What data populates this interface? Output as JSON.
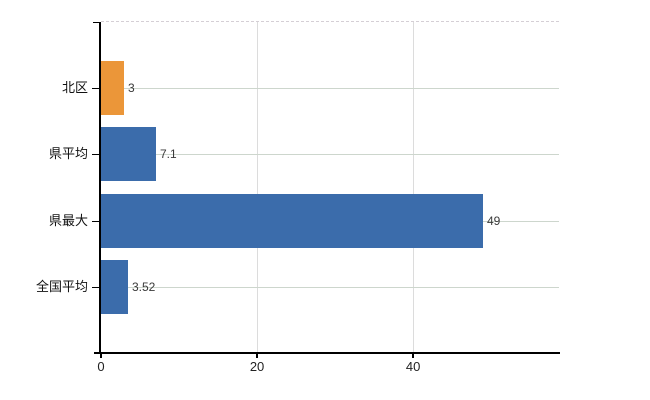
{
  "chart_data": {
    "type": "bar",
    "orientation": "horizontal",
    "title": "",
    "xlabel": "",
    "ylabel": "",
    "categories": [
      "北区",
      "県平均",
      "県最大",
      "全国平均"
    ],
    "values": [
      3,
      7.1,
      49,
      3.52
    ],
    "value_labels": [
      "3",
      "7.1",
      "49",
      "3.52"
    ],
    "bar_colors": [
      "#EB9639",
      "#3B6CAB",
      "#3B6CAB",
      "#3B6CAB"
    ],
    "x_ticks": [
      0,
      20,
      40
    ],
    "x_tick_labels": [
      "0",
      "20",
      "40"
    ],
    "xlim": [
      0,
      58.7
    ],
    "grid": true,
    "legend": "none"
  },
  "colors": {
    "background": "#FFFFFF",
    "axis": "#000000",
    "gridline_h": "#CDD6CD",
    "gridline_v": "#DCDCDC",
    "top_border": "#D5CFD5",
    "value_label": "#3A3A3A",
    "category_label": "#111111",
    "tick_label": "#222222",
    "highlight_bar": "#EB9639",
    "default_bar": "#3B6CAB"
  }
}
